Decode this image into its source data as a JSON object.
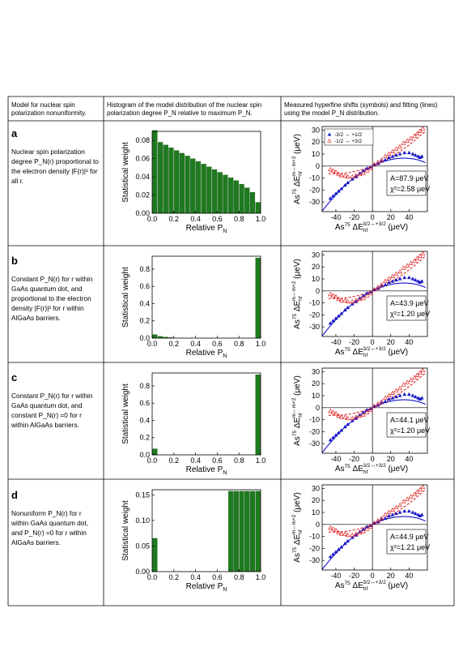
{
  "headers": {
    "col1": "Model for nuclear spin polarization nonuniformity.",
    "col2": "Histogram of the model distribution of the nuclear spin polarization degree P_N relative to maximum P_N.",
    "col3": "Measured hyperfine shifts (symbols) and fitting (lines) using the model P_N distribution."
  },
  "rows": [
    {
      "label": "a",
      "description": "Nuclear spin polarization degree P_N(r) proportional to the electron density |F(r)|² for all r.",
      "fit": {
        "A": "A=87.9 μeV",
        "chi": "χ²=2.58 μeV"
      },
      "legend": true
    },
    {
      "label": "b",
      "description": "Constant P_N(r) for r within GaAs quantum dot, and proportional to the electron density |F(r)|² for r within AlGaAs barriers.",
      "fit": {
        "A": "A=43.9 μeV",
        "chi": "χ²=1.20 μeV"
      },
      "legend": false
    },
    {
      "label": "c",
      "description": "Constant P_N(r) for r within GaAs quantum dot, and constant P_N(r) =0 for r within AlGaAs barriers.",
      "fit": {
        "A": "A=44.1 μeV",
        "chi": "χ²=1.20 μeV"
      },
      "legend": false
    },
    {
      "label": "d",
      "description": "Nonuniform P_N(r) for r within GaAs quantum dot, and P_N(r) =0 for r within AlGaAs barriers.",
      "fit": {
        "A": "A=44.9 μeV",
        "chi": "χ²=1.21 μeV"
      },
      "legend": false
    }
  ],
  "legend": {
    "blue": "-3/2 ↔ +1/2",
    "red": "-1/2 ↔ +3/2"
  },
  "colors": {
    "bar": "#1e7a1e",
    "blue": "#1414c8",
    "red": "#e01e1e"
  },
  "chart_data": [
    {
      "type": "bar",
      "panel": "a",
      "xlabel": "Relative P_N",
      "ylabel": "Statistical weight",
      "xlim": [
        0,
        1
      ],
      "ylim": [
        0,
        0.09
      ],
      "yticks": [
        "0.00",
        "0.02",
        "0.04",
        "0.06",
        "0.08"
      ],
      "xticks": [
        "0.0",
        "0.2",
        "0.4",
        "0.6",
        "0.8",
        "1.0"
      ],
      "bins": [
        0,
        0.05,
        0.1,
        0.15,
        0.2,
        0.25,
        0.3,
        0.35,
        0.4,
        0.45,
        0.5,
        0.55,
        0.6,
        0.65,
        0.7,
        0.75,
        0.8,
        0.85,
        0.9,
        0.95
      ],
      "values": [
        0.091,
        0.078,
        0.075,
        0.072,
        0.069,
        0.066,
        0.063,
        0.06,
        0.057,
        0.054,
        0.051,
        0.048,
        0.045,
        0.042,
        0.039,
        0.036,
        0.032,
        0.028,
        0.023,
        0.012
      ]
    },
    {
      "type": "bar",
      "panel": "b",
      "xlabel": "Relative P_N",
      "ylabel": "Statistical weight",
      "xlim": [
        0,
        1
      ],
      "ylim": [
        0,
        0.95
      ],
      "yticks": [
        "0.0",
        "0.2",
        "0.4",
        "0.6",
        "0.8"
      ],
      "xticks": [
        "0.0",
        "0.2",
        "0.4",
        "0.6",
        "0.8",
        "1.0"
      ],
      "bins": [
        0,
        0.05,
        0.1,
        0.15,
        0.95
      ],
      "values": [
        0.04,
        0.02,
        0.012,
        0.006,
        0.93
      ]
    },
    {
      "type": "bar",
      "panel": "c",
      "xlabel": "Relative P_N",
      "ylabel": "Statistical weight",
      "xlim": [
        0,
        1
      ],
      "ylim": [
        0,
        0.95
      ],
      "yticks": [
        "0.0",
        "0.2",
        "0.4",
        "0.6",
        "0.8"
      ],
      "xticks": [
        "0.0",
        "0.2",
        "0.4",
        "0.6",
        "0.8",
        "1.0"
      ],
      "bins": [
        0,
        0.95
      ],
      "values": [
        0.07,
        0.93
      ]
    },
    {
      "type": "bar",
      "panel": "d",
      "xlabel": "Relative P_N",
      "ylabel": "Statistical weight",
      "xlim": [
        0,
        1
      ],
      "ylim": [
        0,
        0.16
      ],
      "yticks": [
        "0.00",
        "0.05",
        "0.10",
        "0.15"
      ],
      "xticks": [
        "0.0",
        "0.2",
        "0.4",
        "0.6",
        "0.8",
        "1.0"
      ],
      "bins": [
        0,
        0.7,
        0.75,
        0.8,
        0.85,
        0.9,
        0.95
      ],
      "values": [
        0.065,
        0.157,
        0.157,
        0.157,
        0.157,
        0.157,
        0.157
      ]
    },
    {
      "type": "scatter",
      "panel": "shift",
      "xlabel": "As75 ΔE_hf^{3/2↔+3/2} (μeV)",
      "ylabel": "As75 ΔE_hf^{m↔m+2} (μeV)",
      "xlim": [
        -55,
        60
      ],
      "ylim": [
        -38,
        33
      ],
      "xticks": [
        "-40",
        "-20",
        "0",
        "20",
        "40"
      ],
      "yticks": [
        "-30",
        "-20",
        "-10",
        "0",
        "10",
        "20",
        "30"
      ],
      "series": [
        {
          "name": "-3/2 ↔ +1/2",
          "x": [
            -46,
            -43,
            -40,
            -37,
            -34,
            -30,
            -27,
            -22,
            -18,
            -14,
            -10,
            -6,
            -2,
            2,
            6,
            10,
            14,
            18,
            22,
            26,
            30,
            35,
            40,
            44,
            47,
            50,
            52,
            54
          ],
          "y": [
            -27,
            -25,
            -23,
            -21,
            -19,
            -16,
            -14,
            -11,
            -9,
            -6,
            -4,
            -2,
            -1,
            1,
            2,
            4,
            5,
            7,
            8,
            9,
            10,
            11,
            11,
            10,
            9,
            8,
            7,
            8
          ]
        },
        {
          "name": "-1/2 ↔ +3/2",
          "x": [
            -46,
            -43,
            -40,
            -37,
            -34,
            -30,
            -27,
            -22,
            -18,
            -14,
            -10,
            -6,
            -2,
            2,
            6,
            10,
            14,
            18,
            22,
            26,
            30,
            34,
            38,
            42,
            46,
            49,
            52,
            55
          ],
          "y": [
            -3,
            -4,
            -5,
            -7,
            -8,
            -8,
            -9,
            -9,
            -8,
            -7,
            -6,
            -4,
            -2,
            1,
            3,
            5,
            8,
            10,
            12,
            14,
            16,
            19,
            21,
            23,
            25,
            27,
            29,
            31
          ]
        }
      ]
    }
  ]
}
